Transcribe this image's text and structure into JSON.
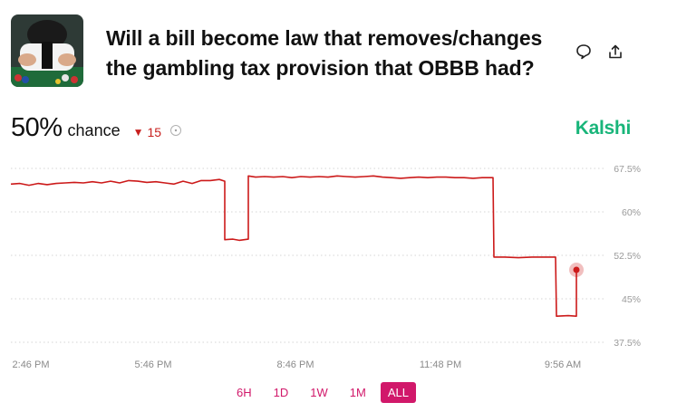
{
  "market": {
    "title": "Will a bill become law that removes/changes the gambling tax provision that OBBB had?",
    "thumbnail_icon": "casino-dealer-image"
  },
  "actions": {
    "comment_icon": "comment-icon",
    "share_icon": "share-icon"
  },
  "stat": {
    "percent": "50%",
    "label": "chance",
    "delta_icon": "down-triangle-icon",
    "delta": "15"
  },
  "brand": {
    "name": "Kalshi",
    "color": "#19b57a"
  },
  "chart_data": {
    "type": "line",
    "series": [
      {
        "color": "#cc1a1a",
        "points": [
          [
            0,
            64.8
          ],
          [
            10,
            64.9
          ],
          [
            20,
            64.6
          ],
          [
            30,
            64.9
          ],
          [
            40,
            64.7
          ],
          [
            50,
            64.9
          ],
          [
            60,
            65.0
          ],
          [
            70,
            65.1
          ],
          [
            80,
            65.0
          ],
          [
            90,
            65.2
          ],
          [
            100,
            65.0
          ],
          [
            110,
            65.3
          ],
          [
            120,
            65.0
          ],
          [
            130,
            65.4
          ],
          [
            140,
            65.3
          ],
          [
            150,
            65.1
          ],
          [
            160,
            65.2
          ],
          [
            170,
            65.0
          ],
          [
            180,
            64.8
          ],
          [
            190,
            65.3
          ],
          [
            200,
            64.9
          ],
          [
            210,
            65.4
          ],
          [
            220,
            65.4
          ],
          [
            230,
            65.6
          ],
          [
            236,
            65.3
          ],
          [
            236,
            55.2
          ],
          [
            245,
            55.3
          ],
          [
            252,
            55.1
          ],
          [
            262,
            55.3
          ],
          [
            262,
            66.2
          ],
          [
            270,
            66.0
          ],
          [
            280,
            66.1
          ],
          [
            290,
            66.0
          ],
          [
            300,
            66.1
          ],
          [
            310,
            65.9
          ],
          [
            320,
            66.1
          ],
          [
            330,
            66.0
          ],
          [
            340,
            66.1
          ],
          [
            350,
            66.0
          ],
          [
            360,
            66.2
          ],
          [
            370,
            66.1
          ],
          [
            380,
            66.0
          ],
          [
            390,
            66.1
          ],
          [
            400,
            66.2
          ],
          [
            410,
            66.0
          ],
          [
            420,
            65.9
          ],
          [
            430,
            65.8
          ],
          [
            440,
            65.9
          ],
          [
            450,
            66.0
          ],
          [
            460,
            65.9
          ],
          [
            470,
            66.0
          ],
          [
            480,
            66.0
          ],
          [
            490,
            65.9
          ],
          [
            500,
            65.9
          ],
          [
            510,
            65.8
          ],
          [
            520,
            65.9
          ],
          [
            532,
            65.9
          ],
          [
            533,
            52.2
          ],
          [
            545,
            52.2
          ],
          [
            560,
            52.1
          ],
          [
            575,
            52.2
          ],
          [
            590,
            52.2
          ],
          [
            601,
            52.2
          ],
          [
            602,
            42.0
          ],
          [
            615,
            42.1
          ],
          [
            624,
            42.0
          ],
          [
            624,
            50.0
          ]
        ],
        "last_value": 50
      }
    ],
    "x_domain": [
      0,
      628
    ],
    "ylim": [
      37.5,
      67.5
    ],
    "y_ticks": [
      {
        "value": 67.5,
        "label": "67.5%"
      },
      {
        "value": 60,
        "label": "60%"
      },
      {
        "value": 52.5,
        "label": "52.5%"
      },
      {
        "value": 45,
        "label": "45%"
      },
      {
        "value": 37.5,
        "label": "37.5%"
      }
    ],
    "x_ticks": [
      {
        "value": 22,
        "label": "2:46 PM"
      },
      {
        "value": 157,
        "label": "5:46 PM"
      },
      {
        "value": 314,
        "label": "8:46 PM"
      },
      {
        "value": 474,
        "label": "11:48 PM"
      },
      {
        "value": 609,
        "label": "9:56 AM"
      }
    ],
    "grid": true
  },
  "range_tabs": [
    {
      "label": "6H",
      "active": false
    },
    {
      "label": "1D",
      "active": false
    },
    {
      "label": "1W",
      "active": false
    },
    {
      "label": "1M",
      "active": false
    },
    {
      "label": "ALL",
      "active": true
    }
  ]
}
